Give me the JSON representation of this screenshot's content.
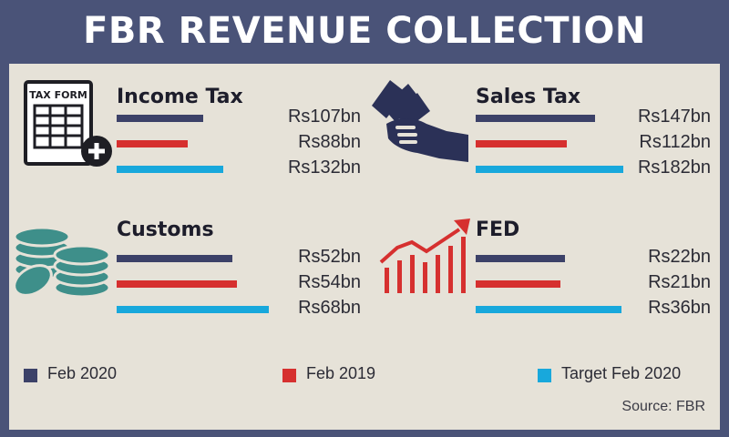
{
  "title": "FBR REVENUE COLLECTION",
  "source": "Source: FBR",
  "colors": {
    "feb2020": "#3c4168",
    "feb2019": "#d6302f",
    "target": "#18a8dc",
    "teal": "#3e8f8a",
    "navy": "#2b3157"
  },
  "icons": {
    "income_tax": "tax-form-icon",
    "sales_tax": "hand-cash-icon",
    "customs": "coin-stack-icon",
    "fed": "growth-chart-icon"
  },
  "tax_form_label": "TAX FORM",
  "chart_data": {
    "type": "bar",
    "series": [
      {
        "name": "Feb 2020",
        "values": [
          107,
          147,
          52,
          22
        ]
      },
      {
        "name": "Feb 2019",
        "values": [
          88,
          112,
          54,
          21
        ]
      },
      {
        "name": "Target Feb 2020",
        "values": [
          132,
          182,
          68,
          36
        ]
      }
    ],
    "categories": [
      "Income Tax",
      "Sales Tax",
      "Customs",
      "FED"
    ],
    "value_labels": [
      [
        "Rs107bn",
        "Rs88bn",
        "Rs132bn"
      ],
      [
        "Rs147bn",
        "Rs112bn",
        "Rs182bn"
      ],
      [
        "Rs52bn",
        "Rs54bn",
        "Rs68bn"
      ],
      [
        "Rs22bn",
        "Rs21bn",
        "Rs36bn"
      ]
    ],
    "legend": [
      "Feb 2020",
      "Feb 2019",
      "Target Feb 2020"
    ],
    "legend_position": "bottom"
  }
}
